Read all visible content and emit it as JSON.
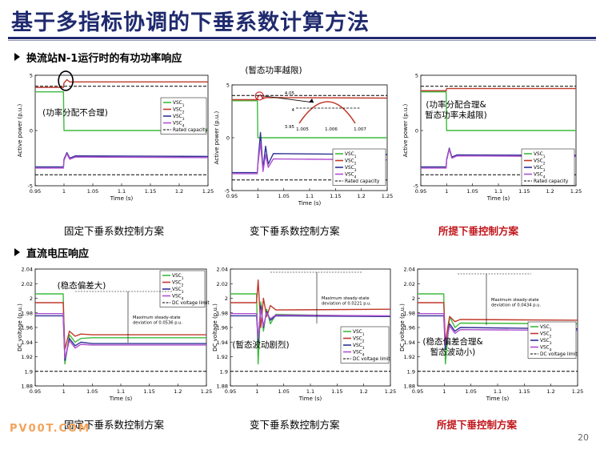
{
  "header": {
    "title": "基于多指标协调的下垂系数计算方法"
  },
  "sections": [
    {
      "label": "换流站N-1运行时的有功功率响应"
    },
    {
      "label": "直流电压响应"
    }
  ],
  "captions": {
    "row1": [
      "固定下垂系数控制方案",
      "变下垂系数控制方案",
      "所提下垂控制方案"
    ],
    "row2": [
      "固定下垂系数控制方案",
      "变下垂系数控制方案",
      "所提下垂控制方案"
    ]
  },
  "footer": {
    "watermark": "PV00T.COM",
    "page_number": "20"
  },
  "colors": {
    "title": "#1f2a6e",
    "highlight": "#c0151a",
    "vsc1": "#3dbb3d",
    "vsc2": "#c0392b",
    "vsc3": "#2e3192",
    "vsc4": "#b04fd0",
    "limit": "#000000",
    "callout": "#c0151a"
  },
  "chart_data": [
    {
      "type": "line",
      "xlabel": "Time (s)",
      "ylabel": "Active power (p.u.)",
      "xlim": [
        0.95,
        1.25
      ],
      "ylim": [
        -5,
        5
      ],
      "xticks": [
        "0.95",
        "1",
        "1.05",
        "1.1",
        "1.15",
        "1.2",
        "1.25"
      ],
      "yticks": [
        "5",
        "0",
        "-5"
      ],
      "legend": [
        "VSC1",
        "VSC2",
        "VSC3",
        "VSC4",
        "Rated capacity"
      ],
      "legend_position": "top-right",
      "annotation": "(功率分配不合理)",
      "series": [
        {
          "name": "VSC1",
          "x": [
            0.95,
            0.999,
            1.0,
            1.25
          ],
          "y": [
            3.5,
            3.5,
            0,
            0
          ]
        },
        {
          "name": "VSC2",
          "x": [
            0.95,
            0.999,
            1.0,
            1.005,
            1.01,
            1.25
          ],
          "y": [
            3.9,
            3.9,
            4.3,
            4.6,
            4.4,
            4.4
          ]
        },
        {
          "name": "VSC3",
          "x": [
            0.95,
            0.999,
            1.0,
            1.005,
            1.01,
            1.02,
            1.25
          ],
          "y": [
            -3.3,
            -3.3,
            -2.6,
            -2.0,
            -2.5,
            -2.3,
            -2.35
          ]
        },
        {
          "name": "VSC4",
          "x": [
            0.95,
            0.999,
            1.0,
            1.005,
            1.01,
            1.02,
            1.25
          ],
          "y": [
            -3.4,
            -3.4,
            -2.7,
            -2.1,
            -2.6,
            -2.4,
            -2.45
          ]
        },
        {
          "name": "Rated capacity",
          "x": [
            0.95,
            1.25
          ],
          "y": [
            4.0,
            4.0
          ]
        },
        {
          "name": "Rated capacity",
          "x": [
            0.95,
            1.25
          ],
          "y": [
            -4.0,
            -4.0
          ]
        }
      ]
    },
    {
      "type": "line",
      "xlabel": "Time (s)",
      "ylabel": "Active power (p.u.)",
      "xlim": [
        0.95,
        1.25
      ],
      "ylim": [
        -5,
        5
      ],
      "xticks": [
        "0.95",
        "1",
        "1.05",
        "1.1",
        "1.15",
        "1.2",
        "1.25"
      ],
      "yticks": [
        "5",
        "0",
        "-5"
      ],
      "legend": [
        "VSC1",
        "VSC2",
        "VSC3",
        "VSC4",
        "Rated capacity"
      ],
      "legend_position": "bottom-right",
      "annotation": "(暂态功率越限)",
      "inset": {
        "xticks": [
          "1.005",
          "1.006",
          "1.007"
        ],
        "yticks": [
          "4.05",
          "4",
          "3.95"
        ]
      },
      "series": [
        {
          "name": "VSC1",
          "x": [
            0.95,
            0.999,
            1.0,
            1.25
          ],
          "y": [
            3.5,
            3.5,
            0,
            0
          ]
        },
        {
          "name": "VSC2",
          "x": [
            0.95,
            0.999,
            1.0,
            1.005,
            1.01,
            1.015,
            1.25
          ],
          "y": [
            3.6,
            3.6,
            3.9,
            4.05,
            3.7,
            3.8,
            3.75
          ]
        },
        {
          "name": "VSC3",
          "x": [
            0.95,
            0.999,
            1.0,
            1.005,
            1.01,
            1.015,
            1.02,
            1.03,
            1.25
          ],
          "y": [
            -3.3,
            -3.3,
            -2.5,
            0.5,
            -3.0,
            -0.8,
            -2.5,
            -1.5,
            -1.6
          ]
        },
        {
          "name": "VSC4",
          "x": [
            0.95,
            0.999,
            1.0,
            1.005,
            1.01,
            1.015,
            1.02,
            1.03,
            1.25
          ],
          "y": [
            -3.4,
            -3.4,
            -2.6,
            -0.5,
            -3.2,
            -1.6,
            -2.8,
            -2.0,
            -2.1
          ]
        },
        {
          "name": "Rated capacity",
          "x": [
            0.95,
            1.25
          ],
          "y": [
            4.0,
            4.0
          ]
        },
        {
          "name": "Rated capacity",
          "x": [
            0.95,
            1.25
          ],
          "y": [
            -4.0,
            -4.0
          ]
        }
      ]
    },
    {
      "type": "line",
      "xlabel": "Time (s)",
      "ylabel": "Active power (p.u.)",
      "xlim": [
        0.95,
        1.25
      ],
      "ylim": [
        -5,
        5
      ],
      "xticks": [
        "0.95",
        "1",
        "1.05",
        "1.1",
        "1.15",
        "1.2",
        "1.25"
      ],
      "yticks": [
        "5",
        "0",
        "-5"
      ],
      "legend": [
        "VSC1",
        "VSC2",
        "VSC3",
        "VSC4",
        "Rated capacity"
      ],
      "legend_position": "bottom-right",
      "annotation": "(功率分配合理&\n暂态功率未越限)",
      "series": [
        {
          "name": "VSC1",
          "x": [
            0.95,
            0.999,
            1.0,
            1.25
          ],
          "y": [
            3.5,
            3.5,
            0,
            0
          ]
        },
        {
          "name": "VSC2",
          "x": [
            0.95,
            0.999,
            1.0,
            1.25
          ],
          "y": [
            3.6,
            3.6,
            3.8,
            3.8
          ]
        },
        {
          "name": "VSC3",
          "x": [
            0.95,
            0.999,
            1.0,
            1.005,
            1.01,
            1.02,
            1.25
          ],
          "y": [
            -3.3,
            -3.3,
            -2.6,
            -1.6,
            -2.4,
            -2.2,
            -2.25
          ]
        },
        {
          "name": "VSC4",
          "x": [
            0.95,
            0.999,
            1.0,
            1.005,
            1.01,
            1.02,
            1.25
          ],
          "y": [
            -3.4,
            -3.4,
            -2.7,
            -1.7,
            -2.5,
            -2.3,
            -2.35
          ]
        },
        {
          "name": "Rated capacity",
          "x": [
            0.95,
            1.25
          ],
          "y": [
            4.0,
            4.0
          ]
        },
        {
          "name": "Rated capacity",
          "x": [
            0.95,
            1.25
          ],
          "y": [
            -4.0,
            -4.0
          ]
        }
      ]
    },
    {
      "type": "line",
      "xlabel": "Time (s)",
      "ylabel": "DC voltage (p.u.)",
      "xlim": [
        0.95,
        1.25
      ],
      "ylim": [
        1.88,
        2.04
      ],
      "xticks": [
        "0.95",
        "1",
        "1.05",
        "1.1",
        "1.15",
        "1.2",
        "1.25"
      ],
      "yticks": [
        "2.04",
        "2.02",
        "2",
        "1.98",
        "1.96",
        "1.94",
        "1.92",
        "1.9",
        "1.88"
      ],
      "legend": [
        "VSC1",
        "VSC2",
        "VSC3",
        "VSC4",
        "DC voltage limit"
      ],
      "legend_position": "right",
      "annotation": "(稳态偏差大)",
      "note": "Maximum steady-state deviation of 0.0536 p.u.",
      "series": [
        {
          "name": "VSC1",
          "x": [
            0.95,
            0.999,
            1.002,
            1.01,
            1.02,
            1.03,
            1.05,
            1.25
          ],
          "y": [
            2.006,
            2.006,
            1.91,
            1.95,
            1.94,
            1.945,
            1.946,
            1.946
          ]
        },
        {
          "name": "VSC2",
          "x": [
            0.95,
            0.999,
            1.002,
            1.01,
            1.02,
            1.03,
            1.05,
            1.25
          ],
          "y": [
            1.994,
            1.994,
            1.93,
            1.955,
            1.948,
            1.951,
            1.95,
            1.95
          ]
        },
        {
          "name": "VSC3",
          "x": [
            0.95,
            0.999,
            1.002,
            1.01,
            1.02,
            1.03,
            1.05,
            1.25
          ],
          "y": [
            1.976,
            1.976,
            1.915,
            1.945,
            1.935,
            1.94,
            1.938,
            1.938
          ]
        },
        {
          "name": "VSC4",
          "x": [
            0.95,
            0.999,
            1.002,
            1.01,
            1.02,
            1.03,
            1.05,
            1.25
          ],
          "y": [
            1.979,
            1.979,
            1.918,
            1.942,
            1.932,
            1.937,
            1.936,
            1.936
          ]
        },
        {
          "name": "DC voltage limit",
          "x": [
            0.95,
            1.25
          ],
          "y": [
            1.9,
            1.9
          ]
        }
      ]
    },
    {
      "type": "line",
      "xlabel": "Time (s)",
      "ylabel": "DC voltage (p.u.)",
      "xlim": [
        0.95,
        1.25
      ],
      "ylim": [
        1.88,
        2.04
      ],
      "xticks": [
        "0.95",
        "1",
        "1.05",
        "1.1",
        "1.15",
        "1.2",
        "1.25"
      ],
      "yticks": [
        "2.04",
        "2.02",
        "2",
        "1.98",
        "1.96",
        "1.94",
        "1.92",
        "1.9",
        "1.88"
      ],
      "legend": [
        "VSC1",
        "VSC2",
        "VSC3",
        "VSC4",
        "DC voltage limit"
      ],
      "legend_position": "right",
      "annotation": "(暂态波动剧烈)",
      "note": "Maximum steady-state deviation of 0.0221 p.u.",
      "series": [
        {
          "name": "VSC1",
          "x": [
            0.95,
            0.999,
            1.002,
            1.007,
            1.012,
            1.018,
            1.025,
            1.035,
            1.25
          ],
          "y": [
            2.006,
            2.006,
            1.91,
            1.995,
            1.955,
            1.985,
            1.965,
            1.978,
            1.975
          ]
        },
        {
          "name": "VSC2",
          "x": [
            0.95,
            0.999,
            1.002,
            1.007,
            1.012,
            1.018,
            1.025,
            1.035,
            1.25
          ],
          "y": [
            1.994,
            1.994,
            2.025,
            1.96,
            2.0,
            1.975,
            1.99,
            1.984,
            1.985
          ]
        },
        {
          "name": "VSC3",
          "x": [
            0.95,
            0.999,
            1.002,
            1.007,
            1.012,
            1.018,
            1.025,
            1.035,
            1.25
          ],
          "y": [
            1.976,
            1.976,
            1.94,
            1.99,
            1.96,
            1.982,
            1.97,
            1.976,
            1.975
          ]
        },
        {
          "name": "VSC4",
          "x": [
            0.95,
            0.999,
            1.002,
            1.007,
            1.012,
            1.018,
            1.025,
            1.035,
            1.25
          ],
          "y": [
            1.979,
            1.979,
            1.945,
            1.985,
            1.962,
            1.98,
            1.972,
            1.977,
            1.976
          ]
        },
        {
          "name": "DC voltage limit",
          "x": [
            0.95,
            1.25
          ],
          "y": [
            1.9,
            1.9
          ]
        }
      ]
    },
    {
      "type": "line",
      "xlabel": "Time (s)",
      "ylabel": "DC voltage (p.u.)",
      "xlim": [
        0.95,
        1.25
      ],
      "ylim": [
        1.88,
        2.04
      ],
      "xticks": [
        "0.95",
        "1",
        "1.05",
        "1.1",
        "1.15",
        "1.2",
        "1.25"
      ],
      "yticks": [
        "2.04",
        "2.02",
        "2",
        "1.98",
        "1.96",
        "1.94",
        "1.92",
        "1.9",
        "1.88"
      ],
      "legend": [
        "VSC1",
        "VSC2",
        "VSC3",
        "VSC4",
        "DC voltage limit"
      ],
      "legend_position": "right",
      "annotation": "(稳态偏差合理&\n暂态波动小)",
      "note": "Maximum steady-state deviation of 0.0434 p.u.",
      "series": [
        {
          "name": "VSC1",
          "x": [
            0.95,
            0.999,
            1.002,
            1.01,
            1.02,
            1.03,
            1.25
          ],
          "y": [
            2.006,
            2.006,
            1.91,
            1.975,
            1.96,
            1.966,
            1.965
          ]
        },
        {
          "name": "VSC2",
          "x": [
            0.95,
            0.999,
            1.002,
            1.01,
            1.02,
            1.03,
            1.25
          ],
          "y": [
            1.994,
            1.994,
            1.94,
            1.975,
            1.968,
            1.971,
            1.97
          ]
        },
        {
          "name": "VSC3",
          "x": [
            0.95,
            0.999,
            1.002,
            1.01,
            1.02,
            1.03,
            1.25
          ],
          "y": [
            1.976,
            1.976,
            1.93,
            1.965,
            1.955,
            1.96,
            1.958
          ]
        },
        {
          "name": "VSC4",
          "x": [
            0.95,
            0.999,
            1.002,
            1.01,
            1.02,
            1.03,
            1.25
          ],
          "y": [
            1.979,
            1.979,
            1.935,
            1.962,
            1.952,
            1.957,
            1.956
          ]
        },
        {
          "name": "DC voltage limit",
          "x": [
            0.95,
            1.25
          ],
          "y": [
            1.9,
            1.9
          ]
        }
      ]
    }
  ]
}
